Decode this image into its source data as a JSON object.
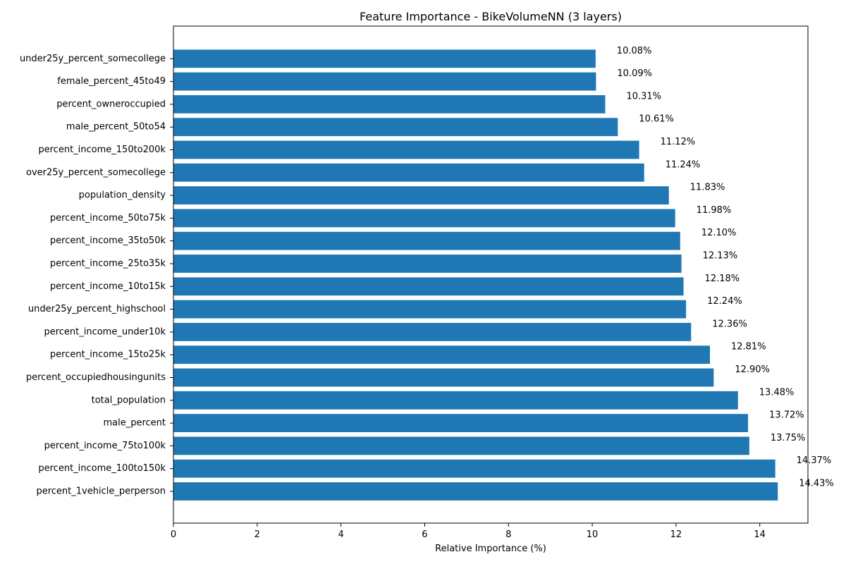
{
  "chart_data": {
    "type": "bar",
    "orientation": "horizontal",
    "title": "Feature Importance - BikeVolumeNN (3 layers)",
    "xlabel": "Relative Importance (%)",
    "ylabel": "",
    "xlim": [
      0,
      15.15
    ],
    "x_ticks": [
      0,
      2,
      4,
      6,
      8,
      10,
      12,
      14
    ],
    "grid": false,
    "bar_color": "#1f77b4",
    "categories": [
      "percent_1vehicle_perperson",
      "percent_income_100to150k",
      "percent_income_75to100k",
      "male_percent",
      "total_population",
      "percent_occupiedhousingunits",
      "percent_income_15to25k",
      "percent_income_under10k",
      "under25y_percent_highschool",
      "percent_income_10to15k",
      "percent_income_25to35k",
      "percent_income_35to50k",
      "percent_income_50to75k",
      "population_density",
      "over25y_percent_somecollege",
      "percent_income_150to200k",
      "male_percent_50to54",
      "percent_owneroccupied",
      "female_percent_45to49",
      "under25y_percent_somecollege"
    ],
    "values": [
      14.43,
      14.37,
      13.75,
      13.72,
      13.48,
      12.9,
      12.81,
      12.36,
      12.24,
      12.18,
      12.13,
      12.1,
      11.98,
      11.83,
      11.24,
      11.12,
      10.61,
      10.31,
      10.09,
      10.08
    ],
    "value_labels": [
      "14.43%",
      "14.37%",
      "13.75%",
      "13.72%",
      "13.48%",
      "12.90%",
      "12.81%",
      "12.36%",
      "12.24%",
      "12.18%",
      "12.13%",
      "12.10%",
      "11.98%",
      "11.83%",
      "11.24%",
      "11.12%",
      "10.61%",
      "10.31%",
      "10.09%",
      "10.08%"
    ]
  }
}
